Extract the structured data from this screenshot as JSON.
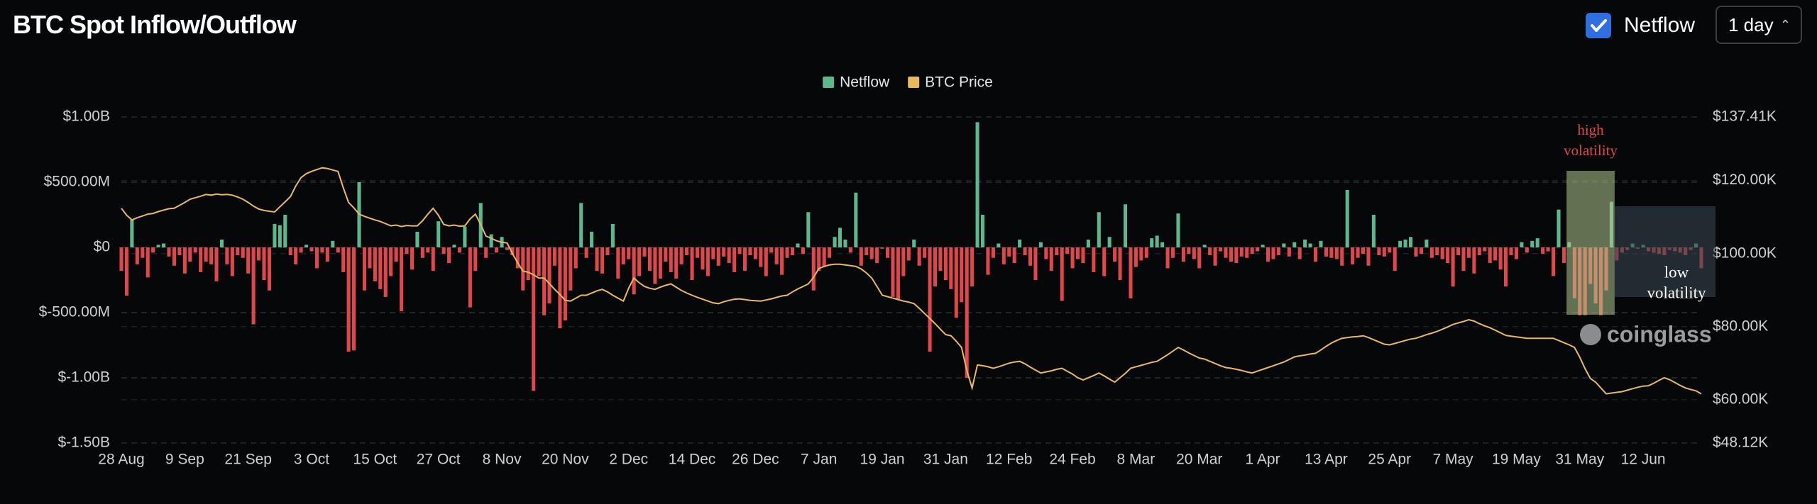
{
  "chart_data": {
    "type": "bar",
    "title": "BTC Spot Inflow/Outflow",
    "controls": {
      "toggle_label": "Netflow",
      "interval": "1 day"
    },
    "categories": [
      "28 Aug",
      null,
      null,
      null,
      null,
      null,
      null,
      null,
      null,
      null,
      null,
      null,
      "9 Sep",
      null,
      null,
      null,
      null,
      null,
      null,
      null,
      null,
      null,
      null,
      null,
      "21 Sep",
      null,
      null,
      null,
      null,
      null,
      null,
      null,
      null,
      null,
      null,
      null,
      "3 Oct",
      null,
      null,
      null,
      null,
      null,
      null,
      null,
      null,
      null,
      null,
      null,
      "15 Oct",
      null,
      null,
      null,
      null,
      null,
      null,
      null,
      null,
      null,
      null,
      null,
      "27 Oct",
      null,
      null,
      null,
      null,
      null,
      null,
      null,
      null,
      null,
      null,
      null,
      "8 Nov",
      null,
      null,
      null,
      null,
      null,
      null,
      null,
      null,
      null,
      null,
      null,
      "20 Nov",
      null,
      null,
      null,
      null,
      null,
      null,
      null,
      null,
      null,
      null,
      null,
      "2 Dec",
      null,
      null,
      null,
      null,
      null,
      null,
      null,
      null,
      null,
      null,
      null,
      "14 Dec",
      null,
      null,
      null,
      null,
      null,
      null,
      null,
      null,
      null,
      null,
      null,
      "26 Dec",
      null,
      null,
      null,
      null,
      null,
      null,
      null,
      null,
      null,
      null,
      null,
      "7 Jan",
      null,
      null,
      null,
      null,
      null,
      null,
      null,
      null,
      null,
      null,
      null,
      "19 Jan",
      null,
      null,
      null,
      null,
      null,
      null,
      null,
      null,
      null,
      null,
      null,
      "31 Jan",
      null,
      null,
      null,
      null,
      null,
      null,
      null,
      null,
      null,
      null,
      null,
      "12 Feb",
      null,
      null,
      null,
      null,
      null,
      null,
      null,
      null,
      null,
      null,
      null,
      "24 Feb",
      null,
      null,
      null,
      null,
      null,
      null,
      null,
      null,
      null,
      null,
      null,
      "8 Mar",
      null,
      null,
      null,
      null,
      null,
      null,
      null,
      null,
      null,
      null,
      null,
      "20 Mar",
      null,
      null,
      null,
      null,
      null,
      null,
      null,
      null,
      null,
      null,
      null,
      "1 Apr",
      null,
      null,
      null,
      null,
      null,
      null,
      null,
      null,
      null,
      null,
      null,
      "13 Apr",
      null,
      null,
      null,
      null,
      null,
      null,
      null,
      null,
      null,
      null,
      null,
      "25 Apr",
      null,
      null,
      null,
      null,
      null,
      null,
      null,
      null,
      null,
      null,
      null,
      "7 May",
      null,
      null,
      null,
      null,
      null,
      null,
      null,
      null,
      null,
      null,
      null,
      "19 May",
      null,
      null,
      null,
      null,
      null,
      null,
      null,
      null,
      null,
      null,
      null,
      "31 May",
      null,
      null,
      null,
      null,
      null,
      null,
      null,
      null,
      null,
      null,
      null,
      "12 Jun",
      null,
      null,
      null,
      null,
      null,
      null,
      null,
      null,
      null,
      null,
      null
    ],
    "series": [
      {
        "name": "Netflow",
        "color": "#5db88f",
        "negative_color": "#e0474c",
        "values": [
          -180000000.0,
          -370000000.0,
          210000000.0,
          -130000000.0,
          -80000000.0,
          -230000000.0,
          -40000000.0,
          20000000.0,
          30000000.0,
          -70000000.0,
          -140000000.0,
          -60000000.0,
          -200000000.0,
          -110000000.0,
          -40000000.0,
          -190000000.0,
          -110000000.0,
          -130000000.0,
          -260000000.0,
          60000000.0,
          -130000000.0,
          -220000000.0,
          -60000000.0,
          -80000000.0,
          -200000000.0,
          -590000000.0,
          -100000000.0,
          -250000000.0,
          -330000000.0,
          180000000.0,
          170000000.0,
          250000000.0,
          -60000000.0,
          -130000000.0,
          -40000000.0,
          20000000.0,
          -30000000.0,
          -160000000.0,
          -40000000.0,
          -110000000.0,
          50000000.0,
          -40000000.0,
          -190000000.0,
          -800000000.0,
          -790000000.0,
          500000000.0,
          -330000000.0,
          -160000000.0,
          -260000000.0,
          -320000000.0,
          -380000000.0,
          -220000000.0,
          -110000000.0,
          -490000000.0,
          -50000000.0,
          -170000000.0,
          120000000.0,
          -80000000.0,
          -40000000.0,
          -180000000.0,
          200000000.0,
          -50000000.0,
          -120000000.0,
          20000000.0,
          -40000000.0,
          160000000.0,
          -460000000.0,
          -180000000.0,
          340000000.0,
          -80000000.0,
          100000000.0,
          -40000000.0,
          80000000.0,
          -20000000.0,
          -60000000.0,
          -160000000.0,
          -330000000.0,
          -250000000.0,
          -1100000000.0,
          -220000000.0,
          -520000000.0,
          -430000000.0,
          -140000000.0,
          -620000000.0,
          -560000000.0,
          -330000000.0,
          -160000000.0,
          340000000.0,
          -80000000.0,
          120000000.0,
          -180000000.0,
          -200000000.0,
          -60000000.0,
          180000000.0,
          -240000000.0,
          -130000000.0,
          -90000000.0,
          -360000000.0,
          -220000000.0,
          -70000000.0,
          -180000000.0,
          -280000000.0,
          -240000000.0,
          -110000000.0,
          -190000000.0,
          -240000000.0,
          -130000000.0,
          -60000000.0,
          -250000000.0,
          -80000000.0,
          -170000000.0,
          -220000000.0,
          -90000000.0,
          -140000000.0,
          -70000000.0,
          -120000000.0,
          -190000000.0,
          -50000000.0,
          -180000000.0,
          -60000000.0,
          -90000000.0,
          -150000000.0,
          -220000000.0,
          -40000000.0,
          -130000000.0,
          -210000000.0,
          -80000000.0,
          -60000000.0,
          30000000.0,
          -50000000.0,
          270000000.0,
          -330000000.0,
          -180000000.0,
          -150000000.0,
          -80000000.0,
          80000000.0,
          150000000.0,
          60000000.0,
          -40000000.0,
          420000000.0,
          -140000000.0,
          -60000000.0,
          -90000000.0,
          -120000000.0,
          -10000000.0,
          -80000000.0,
          -380000000.0,
          -400000000.0,
          -220000000.0,
          -100000000.0,
          60000000.0,
          -140000000.0,
          -80000000.0,
          -800000000.0,
          -300000000.0,
          -180000000.0,
          -250000000.0,
          -320000000.0,
          -540000000.0,
          -420000000.0,
          -1000000000.0,
          -300000000.0,
          960000000.0,
          250000000.0,
          -210000000.0,
          -80000000.0,
          30000000.0,
          -130000000.0,
          -70000000.0,
          -120000000.0,
          60000000.0,
          -60000000.0,
          -140000000.0,
          -250000000.0,
          40000000.0,
          -90000000.0,
          -180000000.0,
          -60000000.0,
          -410000000.0,
          -50000000.0,
          -160000000.0,
          -90000000.0,
          -120000000.0,
          60000000.0,
          -190000000.0,
          270000000.0,
          -220000000.0,
          80000000.0,
          -110000000.0,
          -250000000.0,
          330000000.0,
          -390000000.0,
          -150000000.0,
          -100000000.0,
          -80000000.0,
          70000000.0,
          90000000.0,
          40000000.0,
          -160000000.0,
          -80000000.0,
          260000000.0,
          -110000000.0,
          -50000000.0,
          -90000000.0,
          -160000000.0,
          20000000.0,
          -60000000.0,
          -140000000.0,
          -30000000.0,
          -80000000.0,
          -110000000.0,
          -120000000.0,
          -70000000.0,
          -80000000.0,
          -50000000.0,
          -30000000.0,
          20000000.0,
          -110000000.0,
          -90000000.0,
          -60000000.0,
          30000000.0,
          -70000000.0,
          40000000.0,
          -90000000.0,
          60000000.0,
          30000000.0,
          -110000000.0,
          50000000.0,
          -70000000.0,
          -80000000.0,
          -90000000.0,
          -140000000.0,
          440000000.0,
          -130000000.0,
          -80000000.0,
          -50000000.0,
          -140000000.0,
          250000000.0,
          -60000000.0,
          -70000000.0,
          -40000000.0,
          -180000000.0,
          50000000.0,
          60000000.0,
          80000000.0,
          -70000000.0,
          -50000000.0,
          60000000.0,
          -80000000.0,
          -60000000.0,
          -90000000.0,
          -120000000.0,
          -300000000.0,
          -60000000.0,
          -180000000.0,
          -80000000.0,
          -200000000.0,
          -60000000.0,
          -30000000.0,
          -120000000.0,
          -100000000.0,
          -170000000.0,
          -300000000.0,
          -60000000.0,
          -90000000.0,
          40000000.0,
          -40000000.0,
          50000000.0,
          70000000.0,
          -50000000.0,
          -30000000.0,
          -220000000.0,
          290000000.0,
          -120000000.0,
          40000000.0,
          -390000000.0,
          -520000000.0,
          -520000000.0,
          -280000000.0,
          -430000000.0,
          -520000000.0,
          -330000000.0,
          350000000.0,
          -100000000.0,
          -40000000.0,
          -20000000.0,
          30000000.0,
          -10000000.0,
          20000000.0,
          -30000000.0,
          -40000000.0,
          -50000000.0,
          -60000000.0,
          -20000000.0,
          -30000000.0,
          -40000000.0,
          -60000000.0,
          -20000000.0,
          30000000.0,
          -160000000.0
        ]
      },
      {
        "name": "BTC Price",
        "type": "line",
        "axis": "y2",
        "color": "#e9b95f",
        "values": [
          112400,
          110500,
          109200,
          109800,
          110300,
          110800,
          111000,
          111500,
          111900,
          112300,
          112400,
          113200,
          114000,
          114900,
          115300,
          115700,
          116200,
          116000,
          116300,
          116100,
          116200,
          116000,
          115500,
          114900,
          114000,
          113000,
          112200,
          111800,
          111600,
          111400,
          112800,
          114200,
          115600,
          118500,
          120800,
          121900,
          122500,
          123000,
          123500,
          123300,
          122900,
          122500,
          118000,
          114000,
          112500,
          110800,
          110200,
          109700,
          109200,
          108800,
          108200,
          107600,
          107800,
          107400,
          107700,
          107600,
          107600,
          109000,
          110800,
          112400,
          110500,
          108000,
          107600,
          107800,
          107500,
          107600,
          109500,
          110800,
          108000,
          104800,
          104200,
          103500,
          103100,
          102900,
          100000,
          97500,
          95200,
          94900,
          94200,
          93300,
          93300,
          91800,
          90200,
          88800,
          87200,
          87000,
          87800,
          88600,
          88600,
          89200,
          89800,
          90200,
          89500,
          88600,
          87800,
          87000,
          90500,
          93300,
          92000,
          91000,
          90500,
          90200,
          90800,
          91300,
          91700,
          90800,
          89900,
          89200,
          88600,
          88000,
          87500,
          87000,
          86500,
          86300,
          86800,
          87200,
          87500,
          87600,
          87400,
          87200,
          87100,
          87000,
          87300,
          87600,
          88000,
          88400,
          88600,
          89500,
          90300,
          91000,
          91700,
          93500,
          95900,
          96500,
          96900,
          97100,
          97100,
          96900,
          96700,
          96500,
          95800,
          94700,
          93300,
          91000,
          88600,
          88200,
          87800,
          87400,
          87000,
          86700,
          86300,
          85000,
          83600,
          82200,
          80800,
          79300,
          77800,
          77500,
          76000,
          74300,
          68000,
          63200,
          69500,
          69300,
          69000,
          68600,
          69000,
          69500,
          70000,
          70300,
          70500,
          69800,
          68900,
          68100,
          67300,
          67600,
          67900,
          68300,
          68600,
          67800,
          67000,
          66000,
          65400,
          66000,
          66600,
          67300,
          66500,
          65600,
          64800,
          66000,
          67200,
          68600,
          69000,
          69400,
          69800,
          70200,
          70500,
          71400,
          72300,
          73300,
          74300,
          73600,
          72800,
          72100,
          71400,
          71100,
          70500,
          69900,
          69300,
          68800,
          68600,
          68300,
          68000,
          67600,
          67300,
          67800,
          68300,
          68800,
          69300,
          69800,
          70300,
          71000,
          71700,
          72000,
          72200,
          72500,
          72700,
          73600,
          74600,
          75500,
          76200,
          76800,
          77000,
          77200,
          77300,
          77500,
          77000,
          76400,
          75800,
          75200,
          75000,
          75400,
          75800,
          76200,
          76600,
          76800,
          77300,
          77800,
          78200,
          78700,
          79300,
          79900,
          80600,
          81000,
          81400,
          81900,
          81500,
          80800,
          80200,
          79700,
          79000,
          78300,
          77600,
          77400,
          77200,
          77000,
          76800,
          76800,
          76800,
          76800,
          76800,
          76800,
          76200,
          75600,
          75000,
          74300,
          71600,
          68500,
          65800,
          64800,
          63200,
          61600,
          61800,
          62000,
          62200,
          62600,
          63000,
          63400,
          63700,
          63800,
          64500,
          65300,
          66000,
          65500,
          64700,
          63900,
          63200,
          62800,
          62400,
          61600
        ]
      }
    ],
    "ylim": [
      -1500000000.0,
      1000000000.0
    ],
    "yticks": [
      {
        "value": 1000000000.0,
        "label": "$1.00B"
      },
      {
        "value": 500000000.0,
        "label": "$500.00M"
      },
      {
        "value": 0,
        "label": "$0"
      },
      {
        "value": -500000000.0,
        "label": "$-500.00M"
      },
      {
        "value": -1000000000.0,
        "label": "$-1.00B"
      },
      {
        "value": -1500000000.0,
        "label": "$-1.50B"
      }
    ],
    "y2lim": [
      48120,
      137410
    ],
    "y2ticks": [
      {
        "value": 137410,
        "label": "$137.41K"
      },
      {
        "value": 120000,
        "label": "$120.00K"
      },
      {
        "value": 100000,
        "label": "$100.00K"
      },
      {
        "value": 80000,
        "label": "$80.00K"
      },
      {
        "value": 60000,
        "label": "$60.00K"
      },
      {
        "value": 48120,
        "label": "$48.12K"
      }
    ],
    "grid": true,
    "legend": "top",
    "annotations": [
      {
        "lines": [
          "high",
          "volatility"
        ],
        "color": "#e0474c"
      },
      {
        "lines": [
          "low",
          "volatility"
        ],
        "color": "#ffffff"
      }
    ],
    "watermark": "coinglass"
  }
}
